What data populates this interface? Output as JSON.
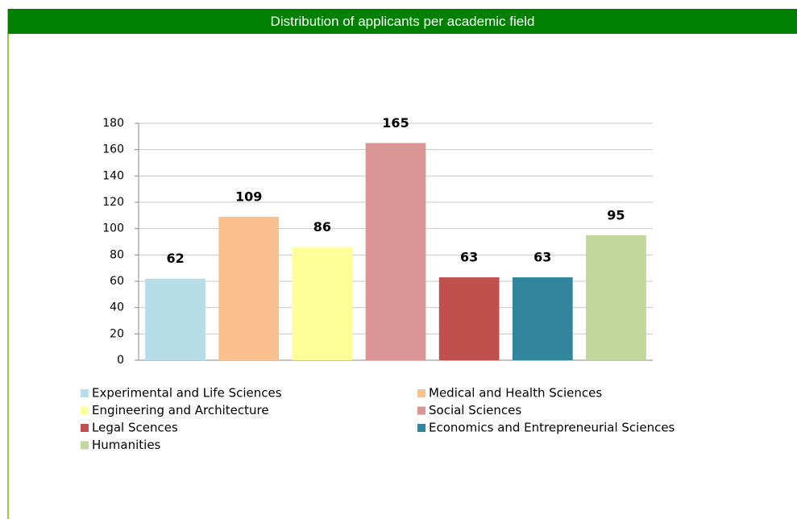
{
  "chart_data": {
    "type": "bar",
    "title": "Distribution of applicants per academic field",
    "categories": [
      "Experimental and Life Sciences",
      "Medical and Health Sciences",
      "Engineering and Architecture",
      "Social Sciences",
      "Legal Scences",
      "Economics and Entrepreneurial Sciences",
      "Humanities"
    ],
    "values": [
      62,
      109,
      86,
      165,
      63,
      63,
      95
    ],
    "colors": [
      "#b7dde8",
      "#fac090",
      "#ffff99",
      "#d99694",
      "#c0504d",
      "#31859c",
      "#c3d69b"
    ],
    "ylim": [
      0,
      180
    ],
    "yticks": [
      0,
      20,
      40,
      60,
      80,
      100,
      120,
      140,
      160,
      180
    ],
    "grid": true,
    "legend": "bottom"
  }
}
